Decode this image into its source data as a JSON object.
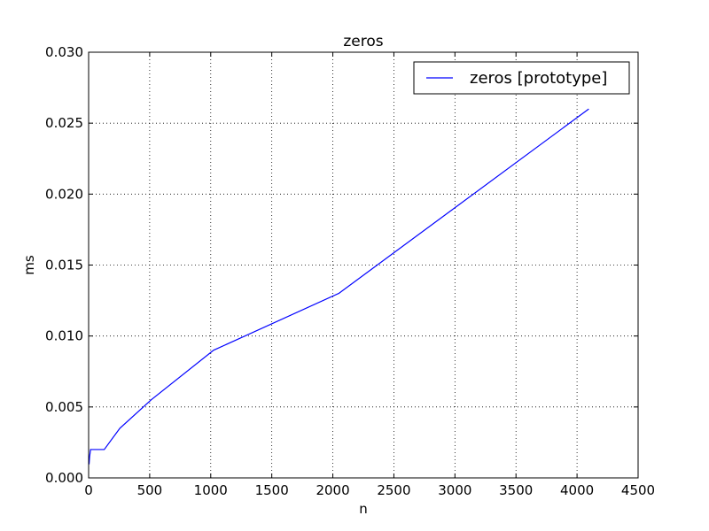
{
  "chart_data": {
    "type": "line",
    "title": "zeros",
    "xlabel": "n",
    "ylabel": "ms",
    "xlim": [
      0,
      4500
    ],
    "ylim": [
      0,
      0.03
    ],
    "xticks": [
      0,
      500,
      1000,
      1500,
      2000,
      2500,
      3000,
      3500,
      4000,
      4500
    ],
    "xtick_labels": [
      "0",
      "500",
      "1000",
      "1500",
      "2000",
      "2500",
      "3000",
      "3500",
      "4000",
      "4500"
    ],
    "yticks": [
      0,
      0.005,
      0.01,
      0.015,
      0.02,
      0.025,
      0.03
    ],
    "ytick_labels": [
      "0.000",
      "0.005",
      "0.010",
      "0.015",
      "0.020",
      "0.025",
      "0.030"
    ],
    "grid": true,
    "legend_position": "top-right",
    "series": [
      {
        "name": "zeros [prototype]",
        "color": "#0000ff",
        "x": [
          1,
          2,
          4,
          8,
          16,
          32,
          64,
          128,
          256,
          512,
          1024,
          2048,
          4096
        ],
        "y": [
          0.001,
          0.001,
          0.001,
          0.0015,
          0.002,
          0.002,
          0.002,
          0.002,
          0.0035,
          0.0055,
          0.009,
          0.013,
          0.026
        ]
      }
    ]
  }
}
